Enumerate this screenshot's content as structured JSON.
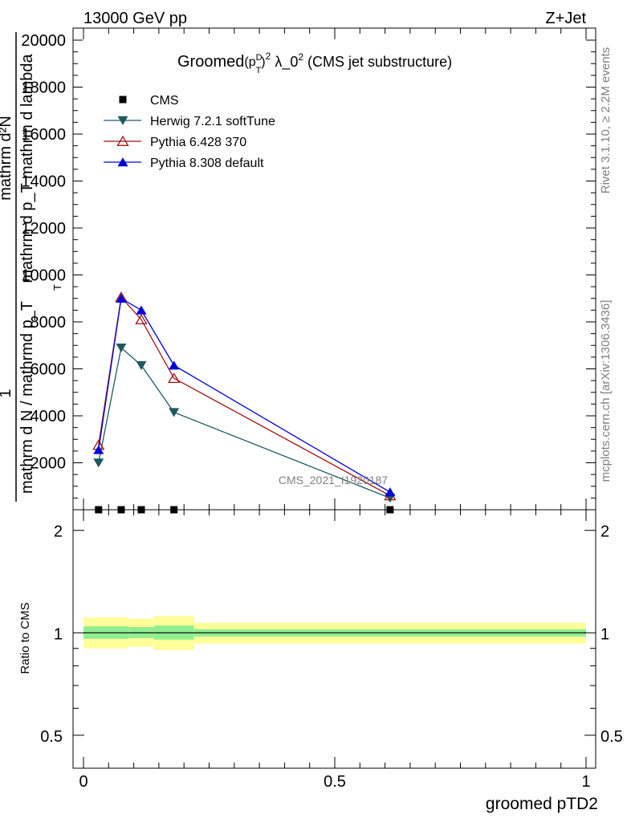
{
  "header": {
    "energy_label": "13000 GeV pp",
    "process_label": "Z+Jet"
  },
  "side_labels": {
    "rivet": "Rivet 3.1.10, ≥ 2.2M events",
    "mcplots": "mcplots.cern.ch [arXiv:1306.3436]"
  },
  "watermark": "CMS_2021_I1920187",
  "chart_data": [
    {
      "type": "line",
      "title_main": "Groomed",
      "title_pt": "(p",
      "title_sup_d": "D",
      "title_sub_t": "T",
      "title_close": ")",
      "title_sup_2": "2",
      "title_lambda": " λ_0",
      "title_sup_2b": "2",
      "title_rest": " (CMS jet substructure)",
      "ylabel_lines": [
        "mathrm d²N",
        "mathrm d p_T mathrm d lambda",
        "1",
        "mathrm d N / mathrmd p_T"
      ],
      "ylabel_sub": "T",
      "ylim": [
        0,
        20000
      ],
      "yticks": [
        2000,
        4000,
        6000,
        8000,
        10000,
        12000,
        14000,
        16000,
        18000,
        20000
      ],
      "ytick_labels": [
        "2000",
        "4000",
        "6000",
        "8000",
        "10000",
        "12000",
        "14000",
        "16000",
        "18000",
        "20000"
      ],
      "xlim": [
        0,
        1
      ],
      "x": [
        0.03,
        0.075,
        0.115,
        0.18,
        0.61
      ],
      "series": [
        {
          "name": "CMS",
          "marker": "square",
          "color": "#000000",
          "values": [
            0,
            0,
            0,
            0,
            0
          ]
        },
        {
          "name": "Herwig 7.2.1 softTune",
          "marker": "triangle-down",
          "color": "#1d5a60",
          "values": [
            2000,
            6900,
            6150,
            4150,
            500
          ]
        },
        {
          "name": "Pythia 6.428 370",
          "marker": "triangle-up-open",
          "color": "#a01010",
          "values": [
            2750,
            9050,
            8100,
            5600,
            600
          ]
        },
        {
          "name": "Pythia 8.308 default",
          "marker": "triangle-up",
          "color": "#0000dd",
          "values": [
            2550,
            9000,
            8500,
            6150,
            750
          ]
        }
      ],
      "legend_position": "top-left"
    },
    {
      "type": "area",
      "ylabel": "Ratio to CMS",
      "xlabel": "groomed pTD2",
      "ylim": [
        0.4,
        2.3
      ],
      "log_y": true,
      "yticks": [
        0.5,
        1,
        2
      ],
      "ytick_labels": [
        "0.5",
        "1",
        "2"
      ],
      "xticks": [
        0,
        0.5,
        1
      ],
      "xtick_labels": [
        "0",
        "0.5",
        "1"
      ],
      "bins": [
        0,
        0.09,
        0.14,
        0.22,
        1
      ],
      "band_stat": [
        [
          0.96,
          1.045
        ],
        [
          0.965,
          1.04
        ],
        [
          0.955,
          1.05
        ],
        [
          0.975,
          1.025
        ]
      ],
      "band_total": [
        [
          0.9,
          1.11
        ],
        [
          0.91,
          1.1
        ],
        [
          0.89,
          1.12
        ],
        [
          0.93,
          1.07
        ]
      ],
      "band_stat_color": "#90ee90",
      "band_total_color": "#ffff99",
      "reference_value": 1
    }
  ]
}
